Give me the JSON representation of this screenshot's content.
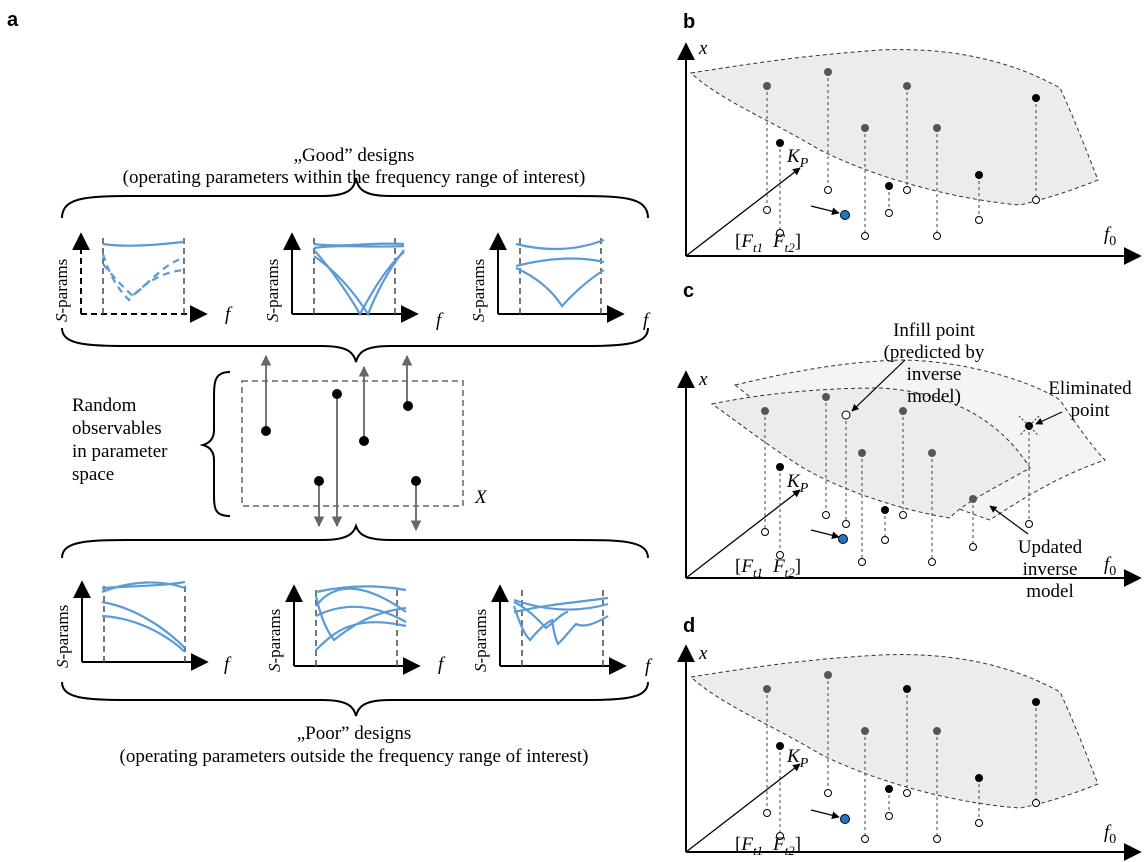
{
  "panel_labels": {
    "a": "a",
    "b": "b",
    "c": "c",
    "d": "d"
  },
  "panel_a": {
    "good_title": "„Good” designs",
    "good_subtitle": "(operating parameters within the frequency range of interest)",
    "poor_title": "„Poor” designs",
    "poor_subtitle": "(operating parameters outside the frequency range of interest)",
    "random_label_lines": [
      "Random",
      "observables",
      "in parameter",
      "space"
    ],
    "space_label": "X",
    "ylabel_italic": "S",
    "ylabel_rest": "-params",
    "xlabel": "f"
  },
  "panel_b": {
    "y_axis": "x",
    "x_axis_main": "f",
    "x_axis_sub": "0",
    "kp_main": "K",
    "kp_sub": "P",
    "target": {
      "open": "[",
      "F1": "F",
      "s1": "t1",
      "F2": "F",
      "s2": "t2",
      "close": "]"
    }
  },
  "panel_c": {
    "y_axis": "x",
    "x_axis_main": "f",
    "x_axis_sub": "0",
    "kp_main": "K",
    "kp_sub": "P",
    "infill_lines": [
      "Infill point",
      "(predicted by",
      "inverse",
      "model)"
    ],
    "eliminated_lines": [
      "Eliminated",
      "point"
    ],
    "updated_lines": [
      "Updated",
      "inverse",
      "model"
    ],
    "target": {
      "open": "[",
      "F1": "F",
      "s1": "t1",
      "F2": "F",
      "s2": "t2",
      "close": "]"
    }
  },
  "panel_d": {
    "y_axis": "x",
    "x_axis_main": "f",
    "x_axis_sub": "0",
    "kp_main": "K",
    "kp_sub": "P",
    "target": {
      "open": "[",
      "F1": "F",
      "s1": "t1",
      "F2": "F",
      "s2": "t2",
      "close": "]"
    }
  },
  "colors": {
    "curve": "#5b9bd5",
    "target_point": "#1f77c4",
    "surface": "#ececec"
  }
}
